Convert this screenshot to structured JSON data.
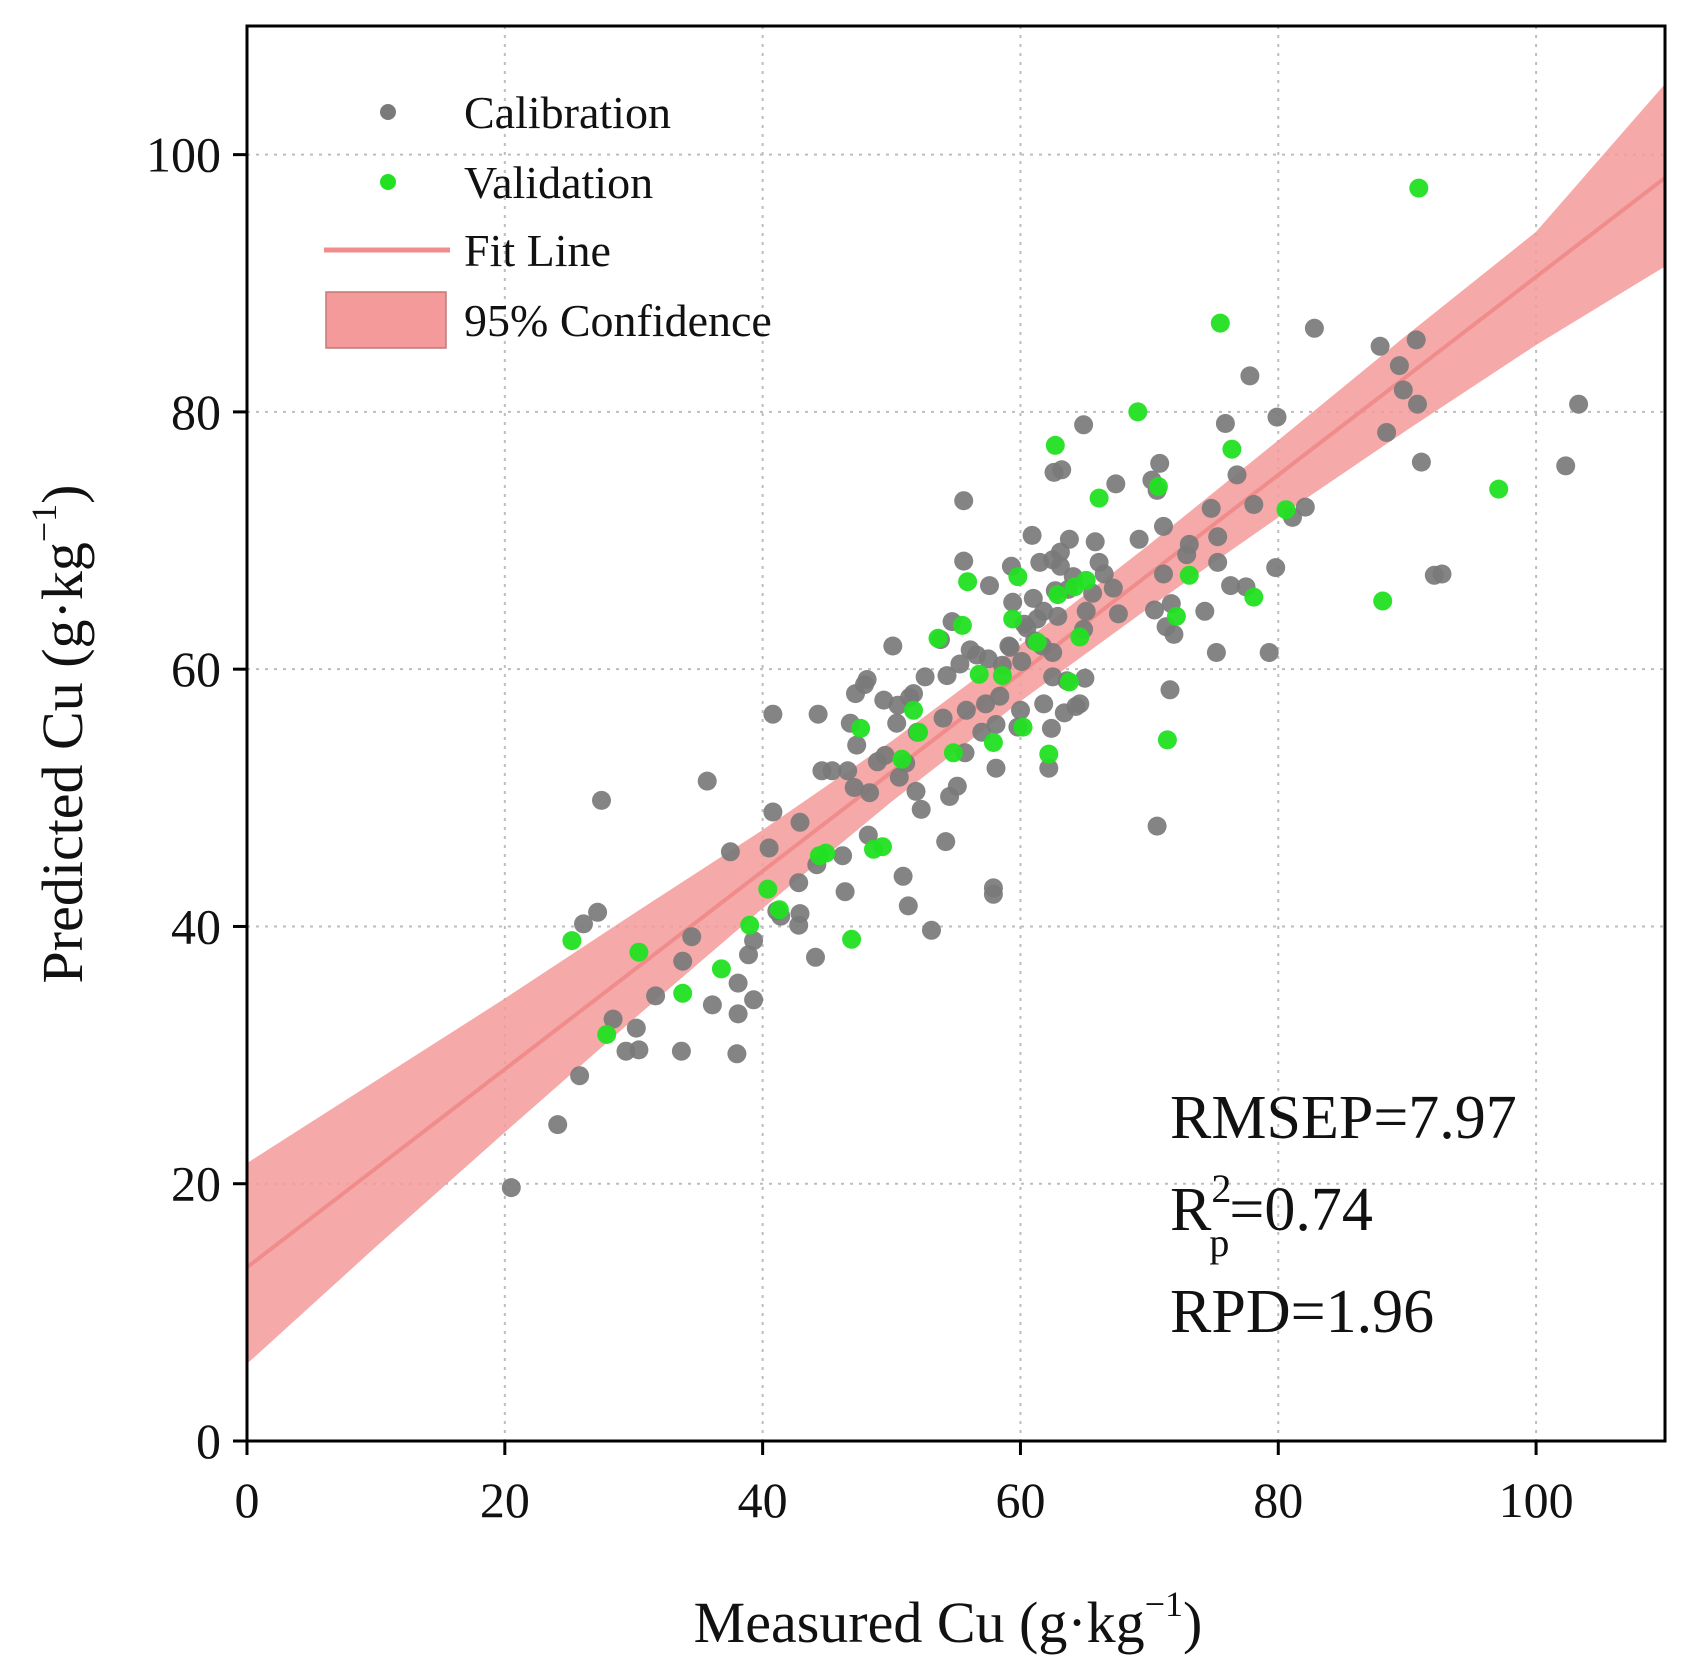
{
  "colors": {
    "calibration": "#7a7a7a",
    "validation": "#22e022",
    "fit_line": "#f08c8c",
    "confidence_band": "#f49a9a",
    "grid": "#bdbdbd",
    "axis": "#000000"
  },
  "chart_data": {
    "type": "scatter",
    "xlabel": {
      "main": "Measured Cu (g·kg",
      "sup": "−1",
      "close": ")"
    },
    "ylabel": {
      "main": "Predicted Cu (g·kg",
      "sup": "−1",
      "close": ")"
    },
    "xlim": [
      0,
      110
    ],
    "ylim": [
      0,
      110
    ],
    "x_ticks": [
      0,
      20,
      40,
      60,
      80,
      100
    ],
    "y_ticks": [
      0,
      20,
      40,
      60,
      80,
      100
    ],
    "x_tick_labels": [
      "0",
      "20",
      "40",
      "60",
      "80",
      "100"
    ],
    "y_tick_labels": [
      "0",
      "20",
      "40",
      "60",
      "80",
      "100"
    ],
    "grid": true,
    "legend": {
      "position": "top-left",
      "entries": [
        {
          "label": "Calibration",
          "kind": "point"
        },
        {
          "label": "Validation",
          "kind": "point"
        },
        {
          "label": "Fit Line",
          "kind": "line"
        },
        {
          "label": "95% Confidence",
          "kind": "band"
        }
      ]
    },
    "fit_line": {
      "intercept": 13.5,
      "slope": 0.77,
      "x_range": [
        0,
        110
      ]
    },
    "confidence_band": {
      "x": [
        0,
        10,
        20,
        30,
        40,
        50,
        60,
        70,
        80,
        90,
        100,
        110
      ],
      "lower": [
        6.0,
        15.1,
        24.0,
        32.8,
        41.4,
        49.7,
        57.5,
        64.8,
        71.8,
        78.6,
        85.2,
        91.3
      ],
      "upper": [
        21.6,
        28.0,
        34.4,
        41.0,
        47.5,
        54.4,
        61.9,
        69.7,
        77.8,
        86.0,
        94.0,
        105.5
      ]
    },
    "series": [
      {
        "name": "Calibration",
        "points": [
          [
            20.5,
            19.7
          ],
          [
            24.1,
            24.6
          ],
          [
            25.8,
            28.4
          ],
          [
            26.1,
            40.2
          ],
          [
            27.2,
            41.1
          ],
          [
            27.5,
            49.8
          ],
          [
            28.4,
            32.8
          ],
          [
            29.4,
            30.3
          ],
          [
            30.2,
            32.1
          ],
          [
            30.4,
            30.4
          ],
          [
            31.7,
            34.6
          ],
          [
            33.7,
            30.3
          ],
          [
            33.8,
            37.3
          ],
          [
            34.5,
            39.2
          ],
          [
            35.7,
            51.3
          ],
          [
            36.1,
            33.9
          ],
          [
            37.5,
            45.8
          ],
          [
            38.0,
            30.1
          ],
          [
            38.1,
            33.2
          ],
          [
            38.1,
            35.6
          ],
          [
            38.9,
            37.8
          ],
          [
            39.3,
            34.3
          ],
          [
            39.3,
            38.9
          ],
          [
            40.5,
            46.1
          ],
          [
            40.8,
            48.9
          ],
          [
            40.8,
            56.5
          ],
          [
            41.1,
            41.2
          ],
          [
            41.4,
            40.8
          ],
          [
            42.8,
            40.1
          ],
          [
            42.9,
            41.0
          ],
          [
            42.8,
            43.4
          ],
          [
            42.9,
            48.1
          ],
          [
            44.1,
            37.6
          ],
          [
            44.2,
            44.8
          ],
          [
            44.3,
            56.5
          ],
          [
            44.6,
            52.1
          ],
          [
            45.4,
            52.1
          ],
          [
            46.2,
            45.5
          ],
          [
            46.4,
            42.7
          ],
          [
            46.6,
            52.1
          ],
          [
            46.8,
            55.8
          ],
          [
            47.1,
            50.8
          ],
          [
            47.2,
            58.1
          ],
          [
            47.3,
            54.1
          ],
          [
            47.9,
            58.8
          ],
          [
            48.1,
            59.2
          ],
          [
            48.2,
            47.1
          ],
          [
            48.3,
            50.4
          ],
          [
            48.9,
            52.8
          ],
          [
            49.4,
            57.6
          ],
          [
            49.5,
            53.3
          ],
          [
            50.1,
            61.8
          ],
          [
            50.4,
            55.8
          ],
          [
            50.5,
            57.2
          ],
          [
            50.6,
            51.6
          ],
          [
            50.9,
            43.9
          ],
          [
            51.1,
            52.7
          ],
          [
            51.3,
            41.6
          ],
          [
            51.4,
            57.8
          ],
          [
            51.7,
            58.1
          ],
          [
            51.9,
            50.5
          ],
          [
            52.0,
            55.1
          ],
          [
            52.3,
            49.1
          ],
          [
            52.6,
            59.4
          ],
          [
            53.1,
            39.7
          ],
          [
            53.8,
            62.3
          ],
          [
            54.0,
            56.2
          ],
          [
            54.2,
            46.6
          ],
          [
            54.3,
            59.5
          ],
          [
            54.5,
            50.1
          ],
          [
            54.7,
            63.7
          ],
          [
            55.1,
            50.9
          ],
          [
            55.3,
            60.4
          ],
          [
            55.6,
            68.4
          ],
          [
            55.6,
            73.1
          ],
          [
            55.7,
            53.5
          ],
          [
            55.8,
            56.8
          ],
          [
            56.1,
            61.5
          ],
          [
            56.6,
            61.1
          ],
          [
            57.0,
            55.1
          ],
          [
            57.3,
            57.3
          ],
          [
            57.5,
            60.8
          ],
          [
            57.6,
            66.5
          ],
          [
            57.9,
            42.5
          ],
          [
            57.9,
            43.0
          ],
          [
            58.1,
            52.3
          ],
          [
            58.1,
            55.7
          ],
          [
            58.4,
            57.9
          ],
          [
            58.6,
            60.3
          ],
          [
            59.1,
            61.8
          ],
          [
            59.2,
            61.7
          ],
          [
            59.3,
            68.0
          ],
          [
            59.4,
            65.2
          ],
          [
            59.8,
            55.5
          ],
          [
            60.0,
            56.8
          ],
          [
            60.1,
            60.6
          ],
          [
            60.3,
            63.5
          ],
          [
            60.5,
            63.2
          ],
          [
            60.9,
            70.4
          ],
          [
            61.0,
            65.5
          ],
          [
            61.1,
            62.2
          ],
          [
            61.3,
            63.9
          ],
          [
            61.5,
            68.3
          ],
          [
            61.7,
            61.8
          ],
          [
            61.8,
            57.3
          ],
          [
            61.8,
            64.5
          ],
          [
            62.2,
            52.3
          ],
          [
            62.4,
            55.4
          ],
          [
            62.5,
            59.4
          ],
          [
            62.5,
            61.3
          ],
          [
            62.5,
            68.5
          ],
          [
            62.6,
            75.3
          ],
          [
            62.7,
            66.1
          ],
          [
            62.9,
            64.1
          ],
          [
            63.1,
            68.0
          ],
          [
            63.1,
            69.1
          ],
          [
            63.2,
            75.5
          ],
          [
            63.4,
            56.6
          ],
          [
            63.6,
            59.1
          ],
          [
            63.7,
            66.2
          ],
          [
            63.8,
            70.1
          ],
          [
            64.1,
            67.2
          ],
          [
            64.3,
            57.1
          ],
          [
            64.6,
            57.3
          ],
          [
            64.9,
            63.1
          ],
          [
            64.9,
            79.0
          ],
          [
            65.0,
            59.3
          ],
          [
            65.1,
            64.5
          ],
          [
            65.6,
            65.9
          ],
          [
            65.8,
            69.9
          ],
          [
            66.1,
            68.3
          ],
          [
            66.5,
            67.4
          ],
          [
            67.2,
            66.3
          ],
          [
            67.4,
            74.4
          ],
          [
            67.6,
            64.3
          ],
          [
            69.2,
            70.1
          ],
          [
            70.2,
            74.7
          ],
          [
            70.4,
            64.6
          ],
          [
            70.6,
            47.8
          ],
          [
            70.6,
            73.9
          ],
          [
            70.8,
            76.0
          ],
          [
            71.1,
            67.4
          ],
          [
            71.1,
            71.1
          ],
          [
            71.3,
            63.3
          ],
          [
            71.6,
            58.4
          ],
          [
            71.7,
            65.1
          ],
          [
            71.9,
            62.7
          ],
          [
            72.9,
            68.9
          ],
          [
            73.1,
            69.7
          ],
          [
            74.3,
            64.5
          ],
          [
            74.8,
            72.5
          ],
          [
            75.2,
            61.3
          ],
          [
            75.3,
            70.3
          ],
          [
            75.3,
            68.3
          ],
          [
            75.9,
            79.1
          ],
          [
            76.3,
            66.5
          ],
          [
            76.8,
            75.1
          ],
          [
            77.5,
            66.4
          ],
          [
            77.8,
            82.8
          ],
          [
            78.1,
            72.8
          ],
          [
            79.3,
            61.3
          ],
          [
            79.8,
            67.9
          ],
          [
            79.9,
            79.6
          ],
          [
            81.1,
            71.8
          ],
          [
            82.1,
            72.6
          ],
          [
            82.8,
            86.5
          ],
          [
            87.9,
            85.1
          ],
          [
            88.4,
            78.4
          ],
          [
            89.4,
            83.6
          ],
          [
            89.7,
            81.7
          ],
          [
            90.7,
            85.6
          ],
          [
            90.8,
            80.6
          ],
          [
            91.1,
            76.1
          ],
          [
            92.1,
            67.3
          ],
          [
            92.7,
            67.4
          ],
          [
            102.3,
            75.8
          ],
          [
            103.3,
            80.6
          ]
        ]
      },
      {
        "name": "Validation",
        "points": [
          [
            25.2,
            38.9
          ],
          [
            27.9,
            31.6
          ],
          [
            30.4,
            38.0
          ],
          [
            33.8,
            34.8
          ],
          [
            36.8,
            36.7
          ],
          [
            39.0,
            40.1
          ],
          [
            40.4,
            42.9
          ],
          [
            41.3,
            41.3
          ],
          [
            44.4,
            45.5
          ],
          [
            44.9,
            45.7
          ],
          [
            46.9,
            39.0
          ],
          [
            47.6,
            55.4
          ],
          [
            48.6,
            46.0
          ],
          [
            49.3,
            46.2
          ],
          [
            50.8,
            53.0
          ],
          [
            51.7,
            56.8
          ],
          [
            52.1,
            55.1
          ],
          [
            53.6,
            62.4
          ],
          [
            54.8,
            53.5
          ],
          [
            55.5,
            63.4
          ],
          [
            55.9,
            66.8
          ],
          [
            56.8,
            59.6
          ],
          [
            57.9,
            54.3
          ],
          [
            58.6,
            59.5
          ],
          [
            59.4,
            63.9
          ],
          [
            59.8,
            67.2
          ],
          [
            60.2,
            55.5
          ],
          [
            61.3,
            62.1
          ],
          [
            62.2,
            53.4
          ],
          [
            62.7,
            77.4
          ],
          [
            62.9,
            65.8
          ],
          [
            63.8,
            59.0
          ],
          [
            64.2,
            66.4
          ],
          [
            64.6,
            62.5
          ],
          [
            65.1,
            66.9
          ],
          [
            66.1,
            73.3
          ],
          [
            69.1,
            80.0
          ],
          [
            70.7,
            74.2
          ],
          [
            71.4,
            54.5
          ],
          [
            72.1,
            64.1
          ],
          [
            73.1,
            67.3
          ],
          [
            75.5,
            86.9
          ],
          [
            76.4,
            77.1
          ],
          [
            78.1,
            65.6
          ],
          [
            80.6,
            72.4
          ],
          [
            88.1,
            65.3
          ],
          [
            90.9,
            97.4
          ],
          [
            97.1,
            74.0
          ]
        ]
      }
    ],
    "annotations": [
      {
        "key": "rmsep",
        "text": "RMSEP=7.97"
      },
      {
        "key": "r2",
        "base": "R",
        "sup": "2",
        "sub": "p",
        "rest": "=0.74"
      },
      {
        "key": "rpd",
        "text": "RPD=1.96"
      }
    ]
  }
}
